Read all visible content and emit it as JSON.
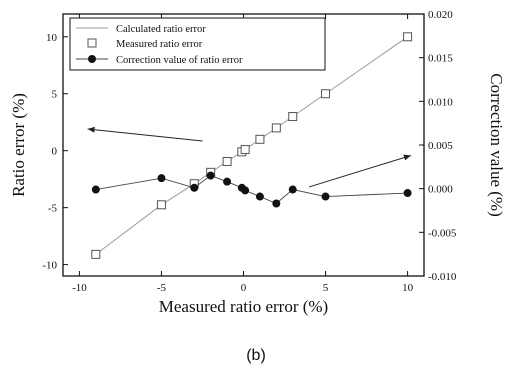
{
  "chart_data": {
    "type": "scatter",
    "xlabel": "Measured ratio error (%)",
    "ylabel": "Ratio error (%)",
    "y2label": "Correction value (%)",
    "xlim": [
      -11,
      11
    ],
    "ylim": [
      -11,
      12
    ],
    "y2lim": [
      -0.01,
      0.02
    ],
    "x_ticks": [
      -10,
      -5,
      0,
      5,
      10
    ],
    "x_tick_labels": [
      "-10",
      "-5",
      "0",
      "5",
      "10"
    ],
    "y_ticks": [
      -10,
      -5,
      0,
      5,
      10
    ],
    "y_tick_labels": [
      "-10",
      "-5",
      "0",
      "5",
      "10"
    ],
    "y2_ticks": [
      -0.01,
      -0.005,
      0.0,
      0.005,
      0.01,
      0.015,
      0.02
    ],
    "y2_tick_labels": [
      "-0.010",
      "-0.005",
      "0.000",
      "0.005",
      "0.010",
      "0.015",
      "0.020"
    ],
    "grid": false,
    "legend_position": "top-left",
    "series": [
      {
        "name": "Calculated ratio error",
        "style": "line",
        "axis": "left",
        "color": "#9a9a9a",
        "x": [
          -9,
          -5,
          -3,
          -2,
          -1,
          0,
          1,
          2,
          3,
          5,
          10
        ],
        "y": [
          -9.1,
          -4.75,
          -2.9,
          -1.9,
          -0.95,
          0,
          1,
          2,
          3,
          5,
          10
        ]
      },
      {
        "name": "Measured ratio error",
        "style": "square",
        "axis": "left",
        "color": "#555555",
        "x": [
          -9,
          -5,
          -3,
          -2,
          -1,
          -0.1,
          0.1,
          1,
          2,
          3,
          5,
          10
        ],
        "y": [
          -9.1,
          -4.75,
          -2.9,
          -1.9,
          -0.95,
          -0.1,
          0.1,
          1,
          2,
          3,
          5,
          10
        ]
      },
      {
        "name": "Correction value of ratio error",
        "style": "line+circle",
        "axis": "right",
        "color": "#111111",
        "x": [
          -9,
          -5,
          -3,
          -2,
          -1,
          -0.1,
          0.1,
          1,
          2,
          3,
          5,
          10
        ],
        "y": [
          -0.0001,
          0.0012,
          0.0001,
          0.0015,
          0.0008,
          0.0001,
          -0.0002,
          -0.0009,
          -0.0017,
          -0.0001,
          -0.0009,
          -0.0005
        ]
      }
    ],
    "annotations": [
      {
        "type": "arrow",
        "target_axis": "left",
        "from": [
          -2.5,
          0.85
        ],
        "to": [
          -9.5,
          1.9
        ]
      },
      {
        "type": "arrow",
        "target_axis": "right",
        "from": [
          4,
          0.0002
        ],
        "to": [
          10.2,
          0.0038
        ]
      }
    ]
  },
  "caption": "(b)"
}
